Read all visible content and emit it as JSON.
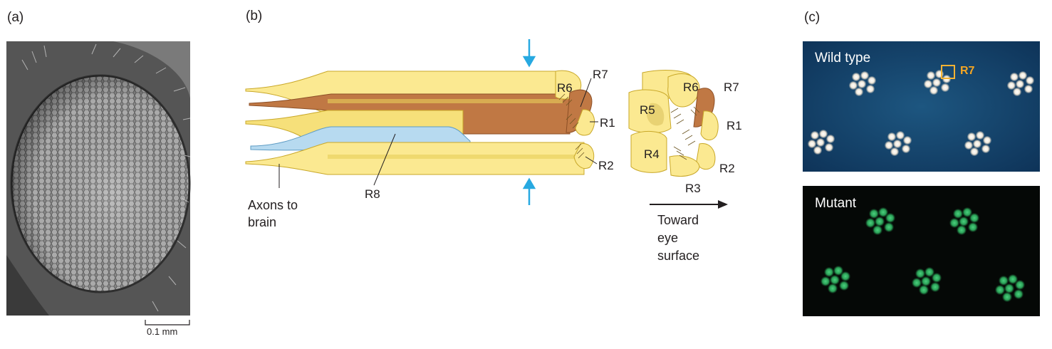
{
  "panels": {
    "a": {
      "label": "(a)",
      "scale_text": "0.1 mm"
    },
    "b": {
      "label": "(b)",
      "long_section": {
        "r6": "R6",
        "r7": "R7",
        "r1": "R1",
        "r2": "R2",
        "r8": "R8"
      },
      "axons_line1": "Axons to",
      "axons_line2": "brain",
      "cross_section": {
        "r6": "R6",
        "r7": "R7",
        "r5": "R5",
        "r1": "R1",
        "r4": "R4",
        "r2": "R2",
        "r3": "R3"
      },
      "toward_line1": "Toward",
      "toward_line2": "eye",
      "toward_line3": "surface"
    },
    "c": {
      "label": "(c)",
      "wild_type": {
        "title": "Wild type",
        "marker": "R7"
      },
      "mutant": {
        "title": "Mutant"
      }
    }
  },
  "colors": {
    "yellow_cell": "#fbe991",
    "yellow_edge": "#c9a829",
    "brown_cell": "#c07844",
    "blue_cell": "#b7daf0",
    "arrow_cyan": "#27a9e1",
    "wild_type_bg": "#123f66",
    "mutant_green": "#29a85a",
    "marker_orange": "#f2b233"
  }
}
